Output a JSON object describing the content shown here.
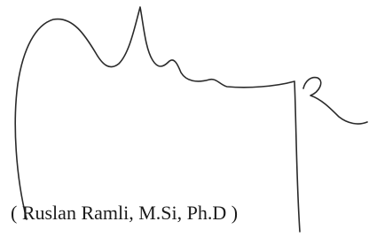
{
  "signature": {
    "name_line": "( Ruslan Ramli, M.Si, Ph.D )"
  }
}
